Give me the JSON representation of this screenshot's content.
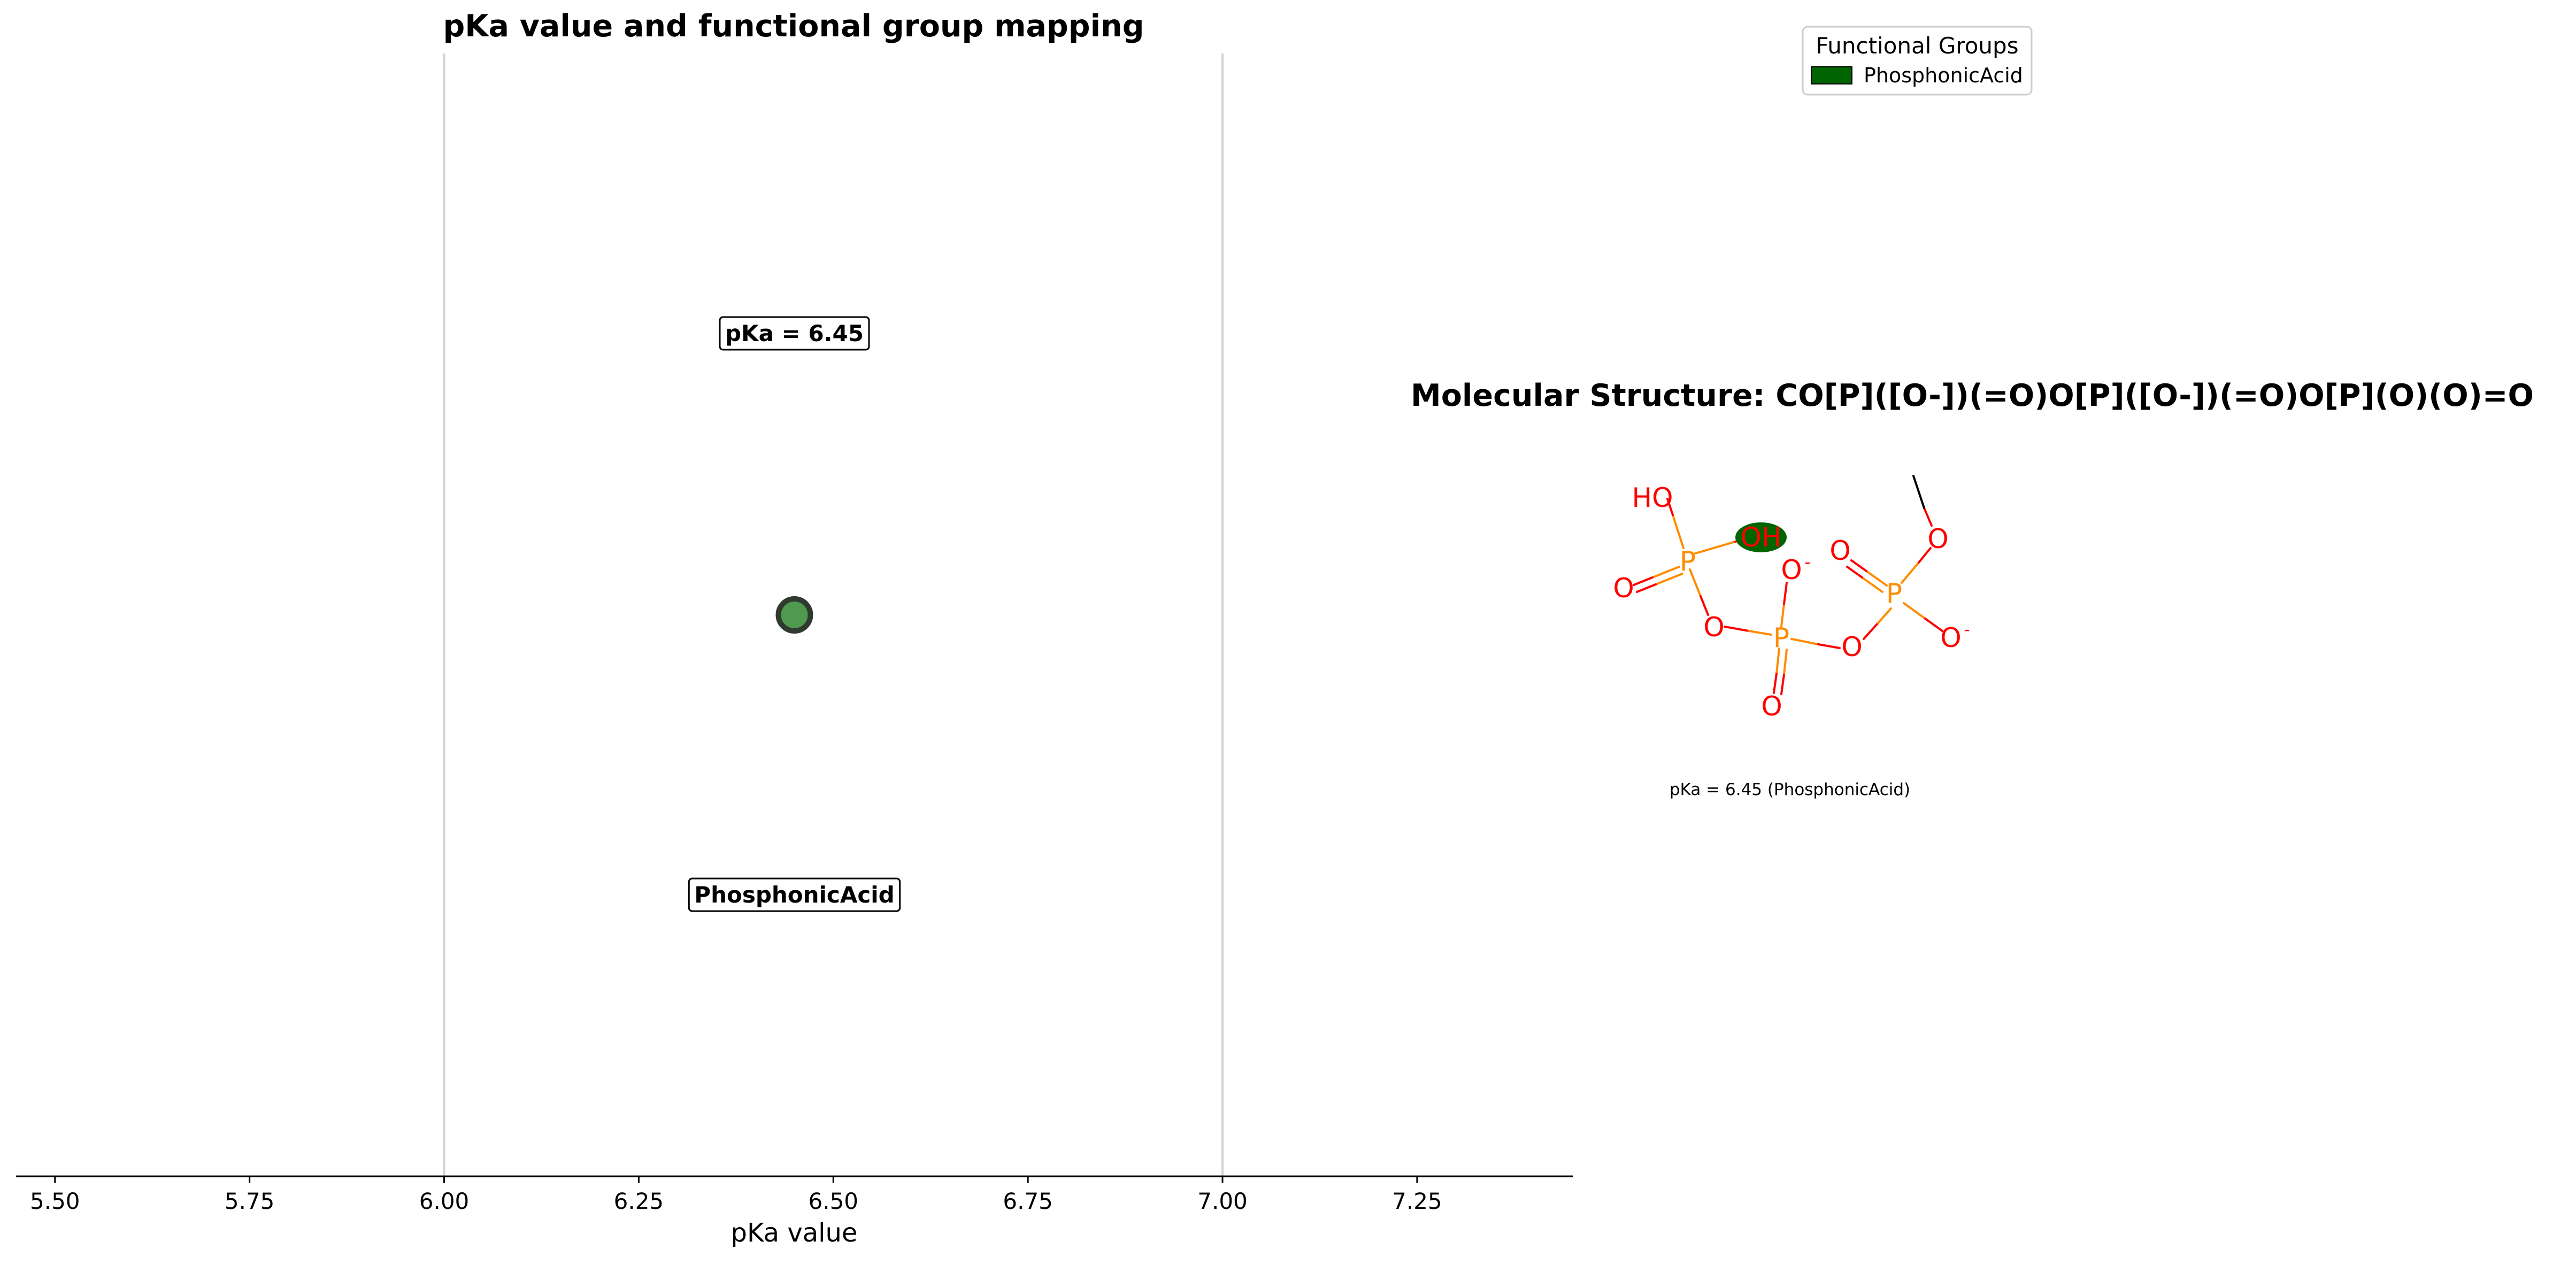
{
  "chart_data": [
    {
      "type": "scatter",
      "title": "pKa value and functional group mapping",
      "xlabel": "pKa value",
      "ylabel": "",
      "xlim": [
        5.45,
        7.45
      ],
      "xticks": [
        5.5,
        5.75,
        6.0,
        6.25,
        6.5,
        6.75,
        7.0,
        7.25
      ],
      "xtick_labels": [
        "5.50",
        "5.75",
        "6.00",
        "6.25",
        "6.50",
        "6.75",
        "7.00",
        "7.25"
      ],
      "reference_lines": [
        6.0,
        7.0
      ],
      "grid": false,
      "points": [
        {
          "x": 6.45,
          "group": "PhosphonicAcid",
          "value_label": "pKa = 6.45",
          "group_label": "PhosphonicAcid",
          "color": "#4f9a4f"
        }
      ]
    }
  ],
  "structure_panel": {
    "title": "Molecular Structure: CO[P]([O-])(=O)O[P]([O-])(=O)O[P](O)(O)=O",
    "caption": "pKa = 6.45 (PhosphonicAcid)",
    "highlight_color": "#006400",
    "atom_color_oxygen": "#ff0000",
    "atom_color_phosphorus": "#ff8c00",
    "atoms": {
      "ho": "HO",
      "oh": "OH",
      "o": "O",
      "o_minus": "O",
      "p": "P",
      "minus": "-"
    }
  },
  "legend": {
    "title": "Functional Groups",
    "placement": "top-right",
    "items": [
      {
        "label": "PhosphonicAcid",
        "color": "#006400"
      }
    ]
  }
}
